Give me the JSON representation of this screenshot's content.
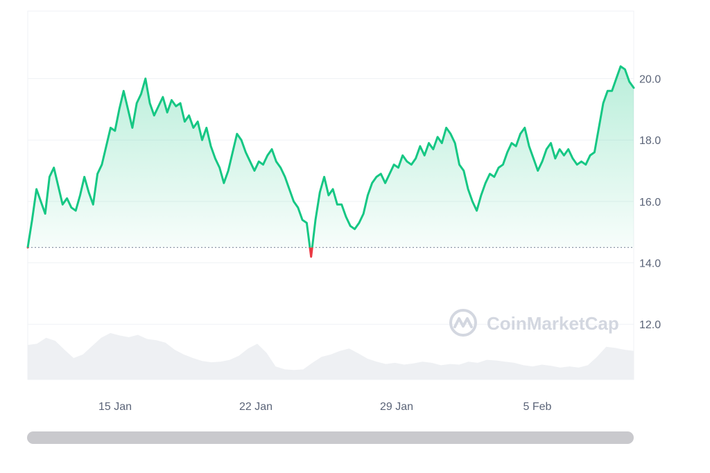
{
  "chart_data": {
    "type": "line",
    "x_tick_labels": [
      "15 Jan",
      "22 Jan",
      "29 Jan",
      "5 Feb"
    ],
    "y_tick_labels": [
      "20.0",
      "18.0",
      "16.0",
      "14.0",
      "12.0"
    ],
    "ylim": [
      10.2,
      22.2
    ],
    "reference_value": 14.5,
    "grid": true,
    "colors": {
      "above_reference": "#16c784",
      "below_reference": "#ea3943",
      "volume_area": "#eef0f3",
      "gridline": "#eff2f5",
      "reference_line": "#8e97a8"
    },
    "series": [
      {
        "values": [
          14.5,
          15.4,
          16.4,
          16.0,
          15.6,
          16.8,
          17.1,
          16.5,
          15.9,
          16.1,
          15.8,
          15.7,
          16.2,
          16.8,
          16.3,
          15.9,
          16.9,
          17.2,
          17.8,
          18.4,
          18.3,
          19.0,
          19.6,
          19.0,
          18.4,
          19.2,
          19.5,
          20.0,
          19.2,
          18.8,
          19.1,
          19.4,
          18.9,
          19.3,
          19.1,
          19.2,
          18.6,
          18.8,
          18.4,
          18.6,
          18.0,
          18.4,
          17.8,
          17.4,
          17.1,
          16.6,
          17.0,
          17.6,
          18.2,
          18.0,
          17.6,
          17.3,
          17.0,
          17.3,
          17.2,
          17.5,
          17.7,
          17.3,
          17.1,
          16.8,
          16.4,
          16.0,
          15.8,
          15.4,
          15.3,
          14.2,
          15.4,
          16.3,
          16.8,
          16.2,
          16.4,
          15.9,
          15.9,
          15.5,
          15.2,
          15.1,
          15.3,
          15.6,
          16.2,
          16.6,
          16.8,
          16.9,
          16.6,
          16.9,
          17.2,
          17.1,
          17.5,
          17.3,
          17.2,
          17.4,
          17.8,
          17.5,
          17.9,
          17.7,
          18.1,
          17.9,
          18.4,
          18.2,
          17.9,
          17.2,
          17.0,
          16.4,
          16.0,
          15.7,
          16.2,
          16.6,
          16.9,
          16.8,
          17.1,
          17.2,
          17.6,
          17.9,
          17.8,
          18.2,
          18.4,
          17.8,
          17.4,
          17.0,
          17.3,
          17.7,
          17.9,
          17.4,
          17.7,
          17.5,
          17.7,
          17.4,
          17.2,
          17.3,
          17.2,
          17.5,
          17.6,
          18.4,
          19.2,
          19.6,
          19.6,
          20.0,
          20.4,
          20.3,
          19.9,
          19.7
        ]
      }
    ],
    "volume": {
      "values": [
        0.58,
        0.6,
        0.7,
        0.65,
        0.5,
        0.36,
        0.42,
        0.56,
        0.7,
        0.78,
        0.74,
        0.71,
        0.75,
        0.68,
        0.66,
        0.62,
        0.5,
        0.42,
        0.36,
        0.31,
        0.29,
        0.3,
        0.33,
        0.4,
        0.52,
        0.6,
        0.45,
        0.22,
        0.17,
        0.16,
        0.17,
        0.28,
        0.38,
        0.42,
        0.48,
        0.52,
        0.44,
        0.35,
        0.3,
        0.26,
        0.28,
        0.25,
        0.27,
        0.3,
        0.28,
        0.24,
        0.26,
        0.25,
        0.3,
        0.28,
        0.33,
        0.32,
        0.3,
        0.28,
        0.24,
        0.22,
        0.25,
        0.23,
        0.2,
        0.22,
        0.2,
        0.24,
        0.38,
        0.55,
        0.53,
        0.5,
        0.48
      ],
      "max": 1.0
    }
  },
  "watermark": {
    "brand": "CoinMarketCap",
    "icon": "coinmarketcap-logo-icon"
  },
  "scrollbar": {
    "icon": "horizontal-scrollbar"
  }
}
